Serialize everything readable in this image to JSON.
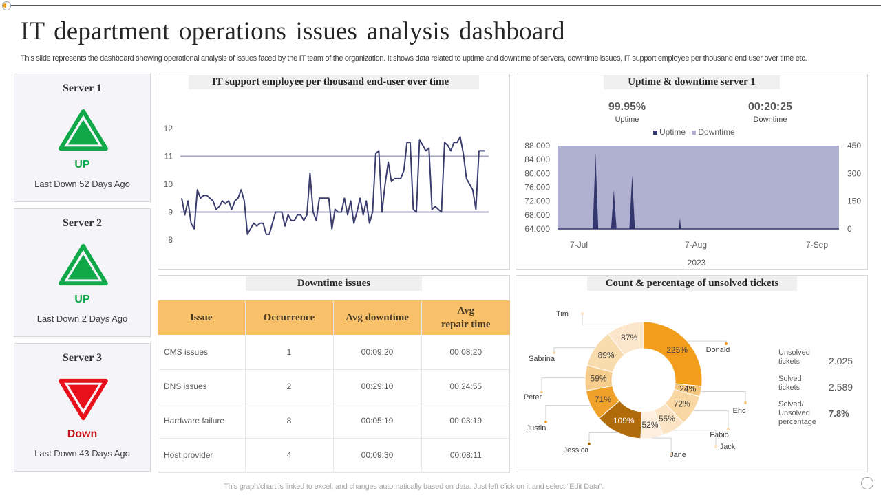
{
  "title": "IT department operations issues analysis dashboard",
  "description": "This slide represents the dashboard showing operational analysis of issues faced by the IT team of the organization. It shows data related to uptime and downtime of servers, downtime issues, IT support employee per thousand end user over time etc.",
  "servers": [
    {
      "name": "Server 1",
      "status": "UP",
      "state": "up",
      "last_down": "Last Down 52 Days Ago"
    },
    {
      "name": "Server 2",
      "status": "UP",
      "state": "up",
      "last_down": "Last Down 2 Days Ago"
    },
    {
      "name": "Server 3",
      "status": "Down",
      "state": "down",
      "last_down": "Last Down 43 Days Ago"
    }
  ],
  "colors": {
    "up": "#11a84a",
    "down": "#e8101a",
    "down_text": "#c0141c",
    "line": "#3b3d6e",
    "uptime": "#33366e",
    "downtime": "#b0b1d0",
    "table_header": "#f9c06a"
  },
  "support_chart": {
    "title": "IT support employee per thousand  end-user over time"
  },
  "uptime_panel": {
    "title": "Uptime  &  downtime  server 1",
    "uptime_value": "99.95%",
    "uptime_label": "Uptime",
    "downtime_value": "00:20:25",
    "downtime_label": "Downtime",
    "legend_uptime": "Uptime",
    "legend_downtime": "Downtime"
  },
  "downtime_issues": {
    "title": "Downtime  issues",
    "headers": [
      "Issue",
      "Occurrence",
      "Avg downtime",
      "Avg repair  time"
    ],
    "header_line1": "Avg",
    "header_line2": "repair  time",
    "rows": [
      {
        "issue": "CMS issues",
        "occurrence": "1",
        "avg_downtime": "00:09:20",
        "avg_repair": "00:08:20"
      },
      {
        "issue": "DNS issues",
        "occurrence": "2",
        "avg_downtime": "00:29:10",
        "avg_repair": "00:24:55"
      },
      {
        "issue": "Hardware failure",
        "occurrence": "8",
        "avg_downtime": "00:05:19",
        "avg_repair": "00:03:19"
      },
      {
        "issue": "Host provider",
        "occurrence": "4",
        "avg_downtime": "00:09:30",
        "avg_repair": "00:08:11"
      }
    ]
  },
  "tickets_panel": {
    "title": "Count  &  percentage of unsolved tickets",
    "stats": [
      {
        "label_line1": "Unsolved",
        "label_line2": "tickets",
        "label_line3": "",
        "value": "2.025"
      },
      {
        "label_line1": "Solved",
        "label_line2": "tickets",
        "label_line3": "",
        "value": "2.589"
      },
      {
        "label_line1": "Solved/",
        "label_line2": "Unsolved",
        "label_line3": "percentage",
        "value": "7.8%"
      }
    ]
  },
  "footer_note": "This graph/chart is linked to excel,  and changes automatically based on data. Just left click on it and select “Edit Data”.",
  "chart_data": [
    {
      "type": "line",
      "title": "IT support employee per thousand  end-user over time",
      "xlabel": "",
      "ylabel": "",
      "ylim": [
        7.5,
        12.5
      ],
      "yticks": [
        8,
        9,
        10,
        11,
        12
      ],
      "reference_lines": [
        9,
        11
      ],
      "grid": false,
      "series": [
        {
          "name": "IT support employee per thousand end-user",
          "values": [
            9.5,
            8.9,
            9.4,
            8.6,
            8.4,
            9.8,
            9.5,
            9.6,
            9.6,
            9.5,
            9.4,
            9.1,
            9.2,
            9.4,
            9.3,
            9.4,
            9.1,
            9.4,
            9.5,
            9.8,
            9.4,
            8.2,
            8.4,
            8.6,
            8.5,
            8.6,
            8.6,
            8.2,
            8.2,
            8.6,
            9.0,
            9.0,
            9.0,
            8.5,
            8.9,
            8.7,
            8.7,
            8.9,
            8.9,
            8.7,
            8.9,
            10.4,
            9.0,
            8.7,
            9.5,
            9.5,
            9.5,
            9.5,
            8.4,
            9.1,
            9.0,
            9.0,
            9.5,
            8.9,
            9.4,
            8.6,
            9.0,
            9.5,
            8.9,
            9.4,
            8.6,
            9.0,
            11.1,
            11.2,
            9.0,
            10.0,
            10.8,
            10.1,
            10.2,
            10.2,
            10.2,
            10.5,
            11.5,
            11.5,
            9.1,
            9.0,
            11.6,
            11.4,
            11.2,
            11.3,
            9.1,
            9.2,
            9.1,
            9.0,
            11.5,
            11.4,
            11.2,
            11.5,
            11.5,
            11.7,
            11.1,
            10.2,
            10.0,
            9.8,
            9.1,
            11.2,
            11.2,
            11.2
          ]
        }
      ]
    },
    {
      "type": "area",
      "title": "Uptime  &  downtime  server 1",
      "xlabel": "2023",
      "x_ticks": [
        "7-Jul",
        "7-Aug",
        "7-Sep"
      ],
      "y_left": {
        "ticks": [
          "64.000",
          "68.000",
          "72.000",
          "76.000",
          "80.000",
          "84.000",
          "88.000"
        ],
        "range": [
          64000,
          88000
        ]
      },
      "y_right": {
        "ticks": [
          "0",
          "150",
          "300",
          "450"
        ],
        "range": [
          0,
          450
        ]
      },
      "legend": "top",
      "series": [
        {
          "name": "Downtime",
          "axis": "left",
          "description": "constant full-height area",
          "values": [
            88000
          ]
        },
        {
          "name": "Uptime",
          "axis": "right",
          "spikes": [
            {
              "position": 0.135,
              "value": 410
            },
            {
              "position": 0.2,
              "value": 210
            },
            {
              "position": 0.265,
              "value": 290
            },
            {
              "position": 0.435,
              "value": 60
            }
          ]
        }
      ]
    },
    {
      "type": "pie",
      "title": "Count  &  percentage of unsolved tickets",
      "donut": true,
      "slices": [
        {
          "label": "Donald",
          "value": 225,
          "text": "225%",
          "color": "#f29d1c"
        },
        {
          "label": "Eric",
          "value": 24,
          "text": "24%",
          "color": "#f5c77e"
        },
        {
          "label": "Fabio",
          "value": 72,
          "text": "72%",
          "color": "#f8d7a3"
        },
        {
          "label": "Jack",
          "value": 55,
          "text": "55%",
          "color": "#fbe4c3"
        },
        {
          "label": "Jane",
          "value": 52,
          "text": "52%",
          "color": "#fdeedd"
        },
        {
          "label": "Jessica",
          "value": 109,
          "text": "109%",
          "color": "#b06b0a"
        },
        {
          "label": "Justin",
          "value": 71,
          "text": "71%",
          "color": "#f0a129"
        },
        {
          "label": "Peter",
          "value": 59,
          "text": "59%",
          "color": "#f7cd8e"
        },
        {
          "label": "Sabrina",
          "value": 89,
          "text": "89%",
          "color": "#f9dcae"
        },
        {
          "label": "Tim",
          "value": 87,
          "text": "87%",
          "color": "#fbe6cb"
        }
      ]
    }
  ]
}
